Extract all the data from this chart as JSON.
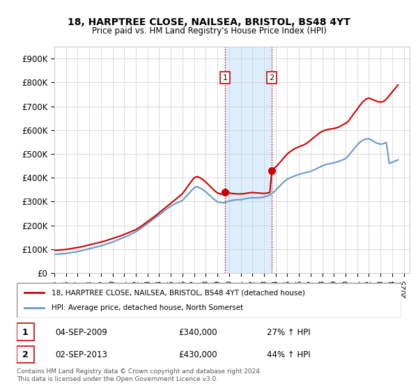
{
  "title": "18, HARPTREE CLOSE, NAILSEA, BRISTOL, BS48 4YT",
  "subtitle": "Price paid vs. HM Land Registry's House Price Index (HPI)",
  "ylabel_ticks": [
    "£0",
    "£100K",
    "£200K",
    "£300K",
    "£400K",
    "£500K",
    "£600K",
    "£700K",
    "£800K",
    "£900K"
  ],
  "ytick_values": [
    0,
    100000,
    200000,
    300000,
    400000,
    500000,
    600000,
    700000,
    800000,
    900000
  ],
  "ylim": [
    0,
    950000
  ],
  "xlim_start": 1995.0,
  "xlim_end": 2025.5,
  "red_color": "#cc0000",
  "blue_color": "#6699cc",
  "shaded_region_color": "#ddeeff",
  "vline_color": "#cc0000",
  "vline_style": ":",
  "marker1_x": 2009.67,
  "marker1_y": 340000,
  "marker2_x": 2013.67,
  "marker2_y": 430000,
  "legend_label_red": "18, HARPTREE CLOSE, NAILSEA, BRISTOL, BS48 4YT (detached house)",
  "legend_label_blue": "HPI: Average price, detached house, North Somerset",
  "annotation1_label": "1",
  "annotation2_label": "2",
  "table_rows": [
    [
      "1",
      "04-SEP-2009",
      "£340,000",
      "27% ↑ HPI"
    ],
    [
      "2",
      "02-SEP-2013",
      "£430,000",
      "44% ↑ HPI"
    ]
  ],
  "footnote": "Contains HM Land Registry data © Crown copyright and database right 2024.\nThis data is licensed under the Open Government Licence v3.0.",
  "red_series_x": [
    1995.0,
    1995.25,
    1995.5,
    1995.75,
    1996.0,
    1996.25,
    1996.5,
    1996.75,
    1997.0,
    1997.25,
    1997.5,
    1997.75,
    1998.0,
    1998.25,
    1998.5,
    1998.75,
    1999.0,
    1999.25,
    1999.5,
    1999.75,
    2000.0,
    2000.25,
    2000.5,
    2000.75,
    2001.0,
    2001.25,
    2001.5,
    2001.75,
    2002.0,
    2002.25,
    2002.5,
    2002.75,
    2003.0,
    2003.25,
    2003.5,
    2003.75,
    2004.0,
    2004.25,
    2004.5,
    2004.75,
    2005.0,
    2005.25,
    2005.5,
    2005.75,
    2006.0,
    2006.25,
    2006.5,
    2006.75,
    2007.0,
    2007.25,
    2007.5,
    2007.75,
    2008.0,
    2008.25,
    2008.5,
    2008.75,
    2009.0,
    2009.25,
    2009.5,
    2009.67,
    2009.67,
    2009.75,
    2010.0,
    2010.25,
    2010.5,
    2010.75,
    2011.0,
    2011.25,
    2011.5,
    2011.75,
    2012.0,
    2012.25,
    2012.5,
    2012.75,
    2013.0,
    2013.25,
    2013.5,
    2013.67,
    2013.67,
    2013.75,
    2014.0,
    2014.25,
    2014.5,
    2014.75,
    2015.0,
    2015.25,
    2015.5,
    2015.75,
    2016.0,
    2016.25,
    2016.5,
    2016.75,
    2017.0,
    2017.25,
    2017.5,
    2017.75,
    2018.0,
    2018.25,
    2018.5,
    2018.75,
    2019.0,
    2019.25,
    2019.5,
    2019.75,
    2020.0,
    2020.25,
    2020.5,
    2020.75,
    2021.0,
    2021.25,
    2021.5,
    2021.75,
    2022.0,
    2022.25,
    2022.5,
    2022.75,
    2023.0,
    2023.25,
    2023.5,
    2023.75,
    2024.0,
    2024.25,
    2024.5
  ],
  "red_series_y": [
    95000,
    96000,
    97000,
    98000,
    99000,
    101000,
    103000,
    105000,
    107000,
    109000,
    112000,
    115000,
    118000,
    121000,
    124000,
    127000,
    130000,
    133000,
    137000,
    141000,
    145000,
    149000,
    153000,
    157000,
    162000,
    167000,
    172000,
    177000,
    182000,
    190000,
    198000,
    207000,
    216000,
    225000,
    234000,
    243000,
    253000,
    263000,
    273000,
    283000,
    293000,
    303000,
    313000,
    323000,
    333000,
    350000,
    367000,
    384000,
    400000,
    405000,
    400000,
    392000,
    382000,
    370000,
    358000,
    346000,
    336000,
    332000,
    330000,
    340000,
    340000,
    338000,
    336000,
    334000,
    333000,
    332000,
    332000,
    333000,
    335000,
    337000,
    338000,
    337000,
    336000,
    335000,
    334000,
    336000,
    338000,
    430000,
    430000,
    435000,
    445000,
    458000,
    472000,
    487000,
    500000,
    510000,
    518000,
    525000,
    530000,
    535000,
    540000,
    548000,
    558000,
    568000,
    578000,
    588000,
    595000,
    600000,
    603000,
    605000,
    607000,
    610000,
    615000,
    622000,
    628000,
    638000,
    655000,
    672000,
    688000,
    705000,
    720000,
    730000,
    735000,
    730000,
    725000,
    720000,
    718000,
    720000,
    730000,
    745000,
    760000,
    775000,
    790000
  ],
  "blue_series_x": [
    1995.0,
    1995.25,
    1995.5,
    1995.75,
    1996.0,
    1996.25,
    1996.5,
    1996.75,
    1997.0,
    1997.25,
    1997.5,
    1997.75,
    1998.0,
    1998.25,
    1998.5,
    1998.75,
    1999.0,
    1999.25,
    1999.5,
    1999.75,
    2000.0,
    2000.25,
    2000.5,
    2000.75,
    2001.0,
    2001.25,
    2001.5,
    2001.75,
    2002.0,
    2002.25,
    2002.5,
    2002.75,
    2003.0,
    2003.25,
    2003.5,
    2003.75,
    2004.0,
    2004.25,
    2004.5,
    2004.75,
    2005.0,
    2005.25,
    2005.5,
    2005.75,
    2006.0,
    2006.25,
    2006.5,
    2006.75,
    2007.0,
    2007.25,
    2007.5,
    2007.75,
    2008.0,
    2008.25,
    2008.5,
    2008.75,
    2009.0,
    2009.25,
    2009.5,
    2009.75,
    2010.0,
    2010.25,
    2010.5,
    2010.75,
    2011.0,
    2011.25,
    2011.5,
    2011.75,
    2012.0,
    2012.25,
    2012.5,
    2012.75,
    2013.0,
    2013.25,
    2013.5,
    2013.75,
    2014.0,
    2014.25,
    2014.5,
    2014.75,
    2015.0,
    2015.25,
    2015.5,
    2015.75,
    2016.0,
    2016.25,
    2016.5,
    2016.75,
    2017.0,
    2017.25,
    2017.5,
    2017.75,
    2018.0,
    2018.25,
    2018.5,
    2018.75,
    2019.0,
    2019.25,
    2019.5,
    2019.75,
    2020.0,
    2020.25,
    2020.5,
    2020.75,
    2021.0,
    2021.25,
    2021.5,
    2021.75,
    2022.0,
    2022.25,
    2022.5,
    2022.75,
    2023.0,
    2023.25,
    2023.5,
    2023.75,
    2024.0,
    2024.25,
    2024.5
  ],
  "blue_series_y": [
    78000,
    79000,
    80000,
    81000,
    82000,
    84000,
    86000,
    88000,
    90000,
    93000,
    96000,
    99000,
    102000,
    105000,
    108000,
    111000,
    114000,
    118000,
    122000,
    126000,
    130000,
    135000,
    140000,
    145000,
    150000,
    155000,
    161000,
    167000,
    173000,
    181000,
    190000,
    199000,
    208000,
    217000,
    226000,
    235000,
    244000,
    253000,
    263000,
    272000,
    281000,
    288000,
    294000,
    299000,
    305000,
    318000,
    331000,
    345000,
    358000,
    363000,
    357000,
    350000,
    341000,
    330000,
    319000,
    308000,
    299000,
    296000,
    295000,
    298000,
    302000,
    305000,
    307000,
    308000,
    308000,
    310000,
    313000,
    315000,
    316000,
    316000,
    316000,
    317000,
    319000,
    323000,
    328000,
    336000,
    347000,
    360000,
    373000,
    385000,
    394000,
    400000,
    405000,
    410000,
    414000,
    418000,
    421000,
    423000,
    427000,
    432000,
    438000,
    444000,
    450000,
    455000,
    458000,
    460000,
    463000,
    466000,
    470000,
    475000,
    481000,
    492000,
    508000,
    523000,
    538000,
    550000,
    558000,
    563000,
    564000,
    558000,
    550000,
    544000,
    541000,
    543000,
    549000,
    460000,
    465000,
    470000,
    475000
  ]
}
